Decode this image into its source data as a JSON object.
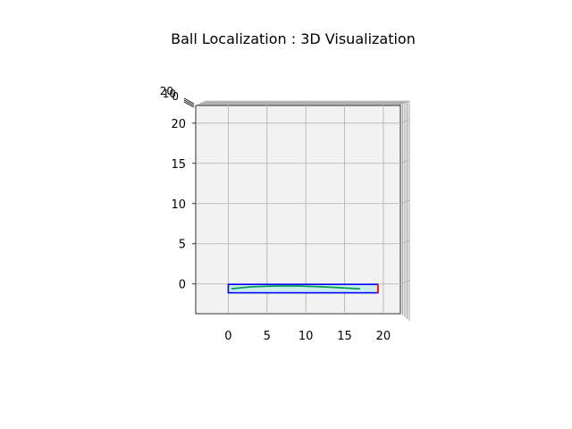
{
  "chart_data": {
    "type": "line",
    "title": "Ball Localization : 3D Visualization",
    "projection": "3d",
    "view": "top-down",
    "grid": true,
    "xlabel": "",
    "ylabel": "",
    "zlabel": "",
    "xlim": [
      -4.2,
      22.2
    ],
    "ylim": [
      -3.7,
      22.2
    ],
    "zlim": [
      0,
      20
    ],
    "x_ticks": [
      "0",
      "5",
      "10",
      "15",
      "20"
    ],
    "y_ticks": [
      "0",
      "5",
      "10",
      "15",
      "20"
    ],
    "z_ticks": [
      "0",
      "10",
      "20"
    ],
    "series": [
      {
        "kind": "line",
        "color": "#00a050",
        "x": [
          0.4,
          3,
          6,
          9,
          12,
          15,
          17
        ],
        "y": [
          -0.6,
          -0.35,
          -0.25,
          -0.25,
          -0.35,
          -0.5,
          -0.6
        ]
      },
      {
        "kind": "rectangle",
        "color": "#0000ff",
        "x": [
          0,
          19.3
        ],
        "y": [
          -1.1,
          -0.05
        ]
      },
      {
        "kind": "line",
        "color": "#ff0000",
        "x": [
          19.3,
          19.3
        ],
        "y": [
          -1.1,
          -0.05
        ]
      }
    ]
  }
}
